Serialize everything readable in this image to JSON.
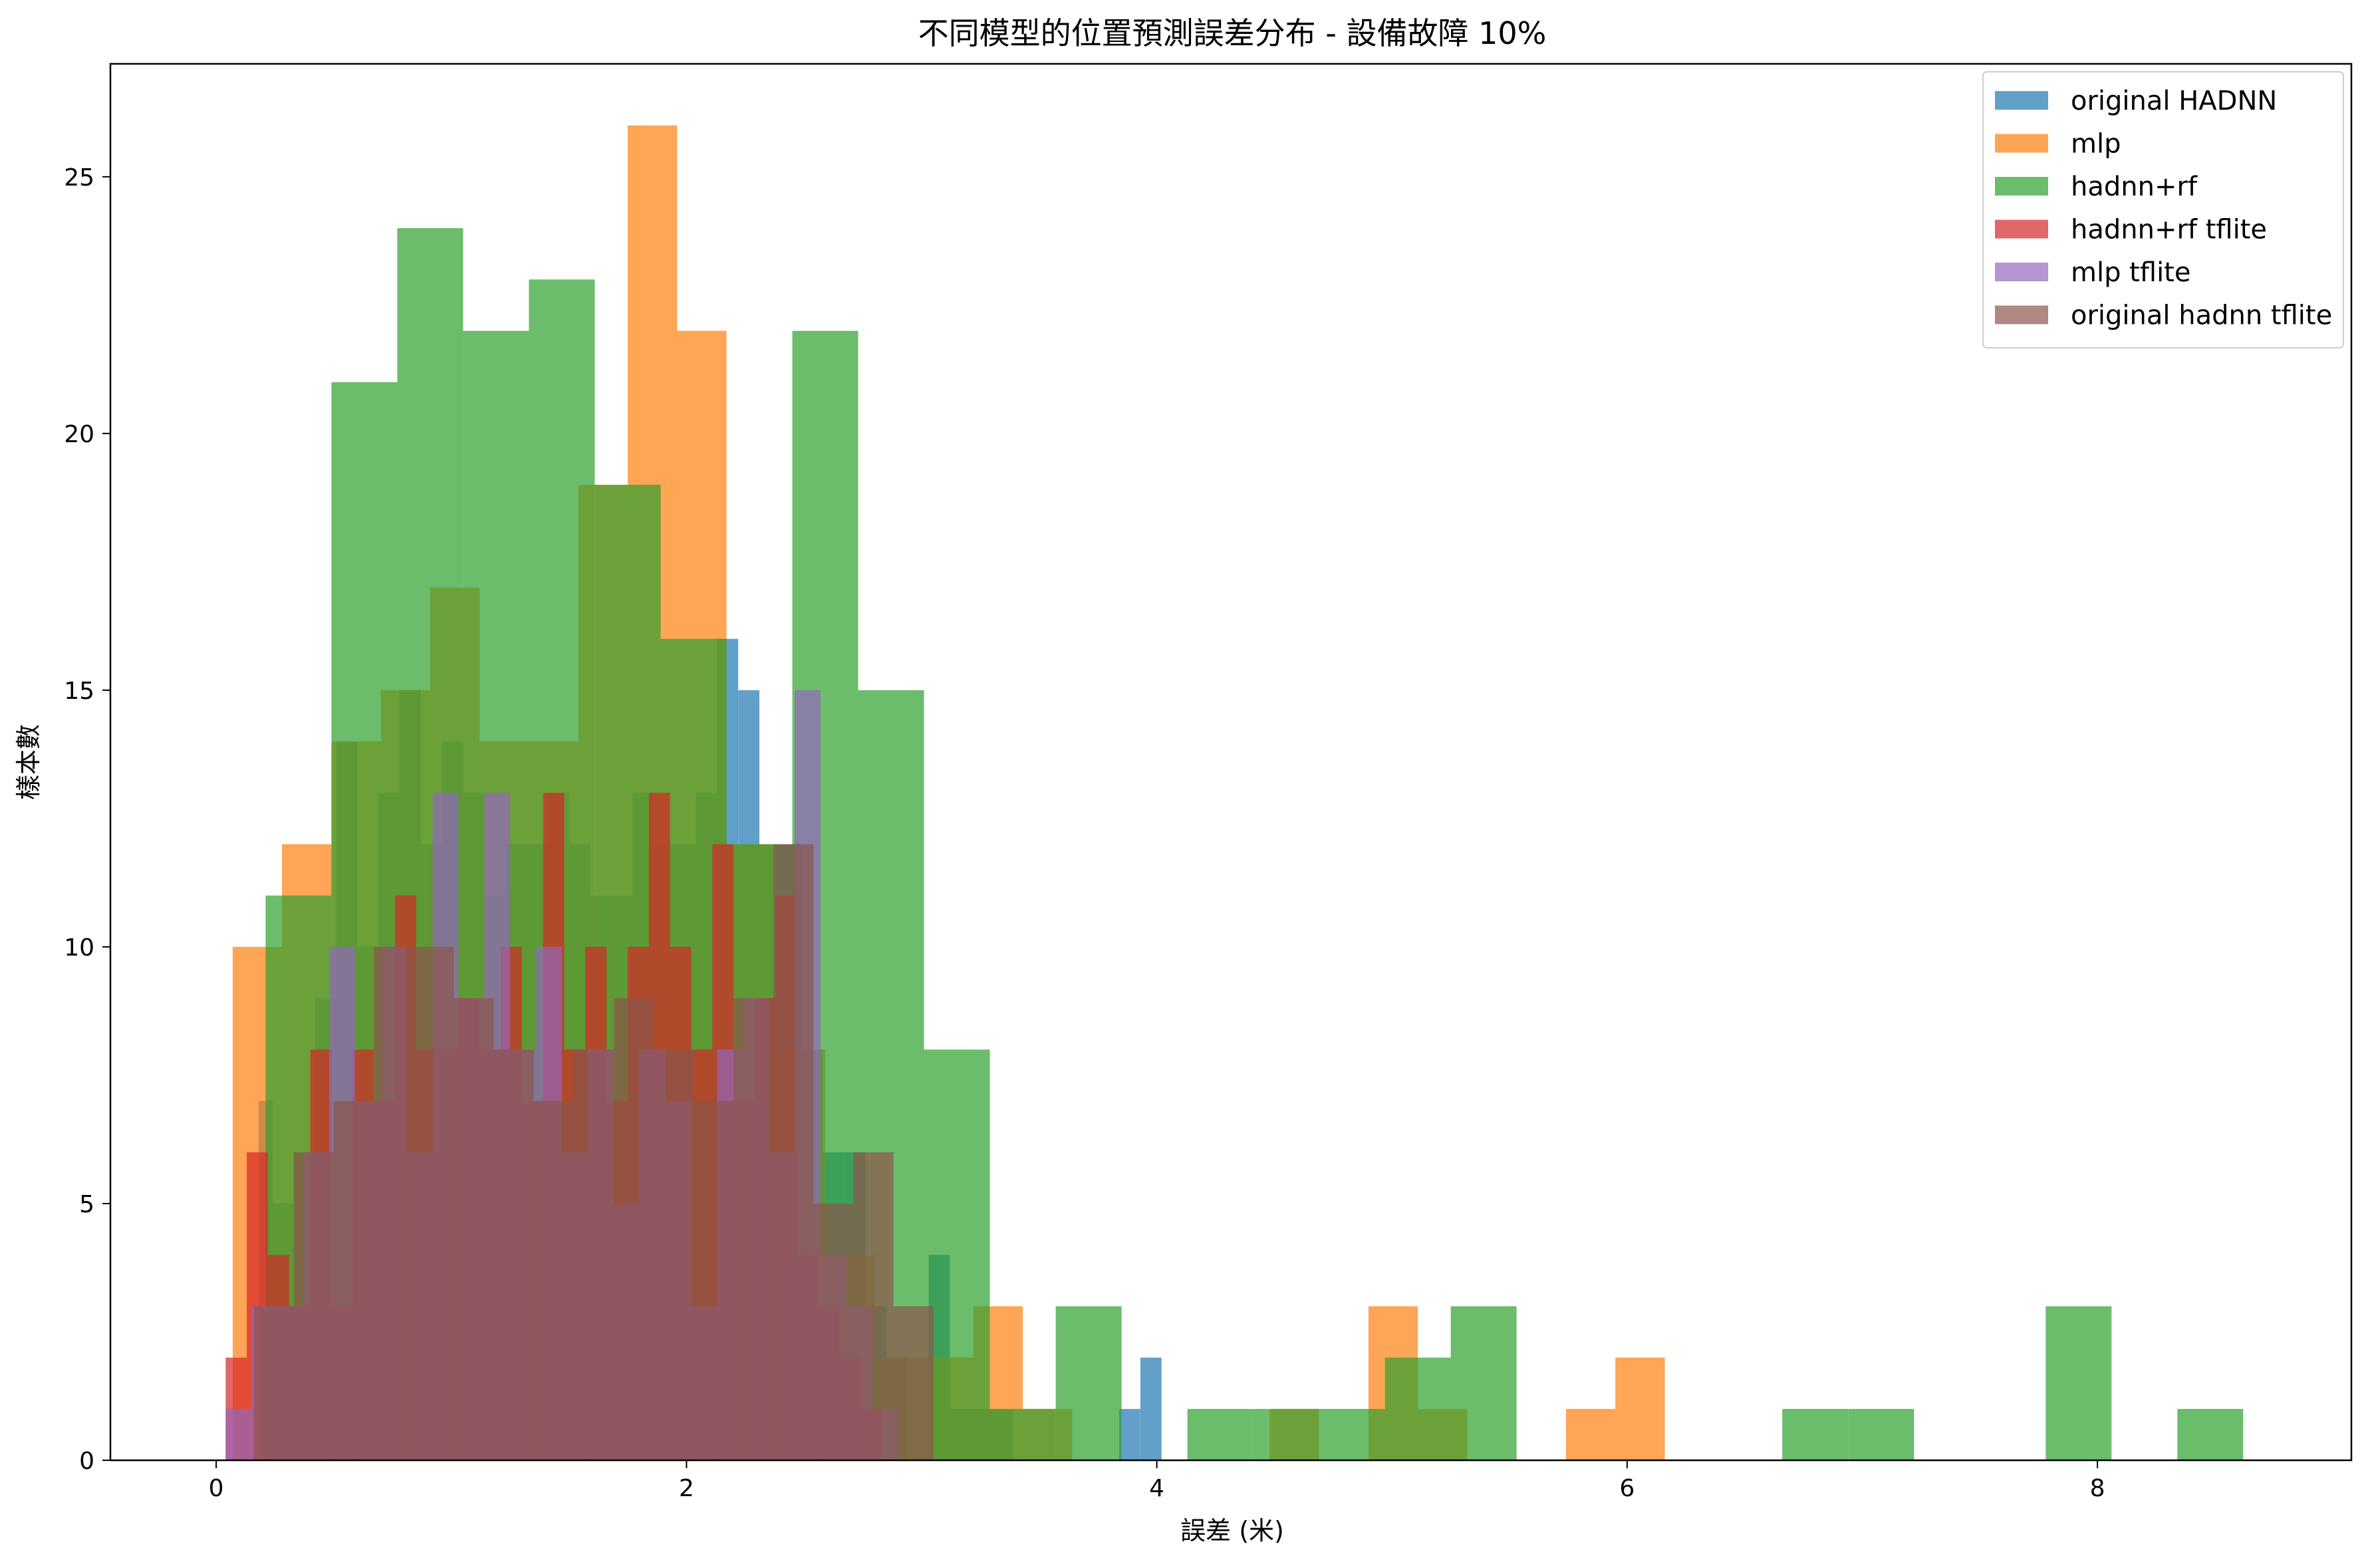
{
  "chart_data": {
    "type": "bar",
    "title": "不同模型的位置預測誤差分布 - 設備故障 10%",
    "xlabel": "誤差 (米)",
    "ylabel": "樣本數",
    "xlim": [
      -0.45,
      9.08
    ],
    "ylim": [
      0,
      27.2
    ],
    "xticks": [
      0,
      2,
      4,
      6,
      8
    ],
    "yticks": [
      0,
      5,
      10,
      15,
      20,
      25
    ],
    "grid": false,
    "legend_position": "top-right",
    "series": [
      {
        "name": "original HADNN",
        "color": "#1f77b4",
        "opacity": 0.7,
        "bins": [
          [
            0.18,
            0.24,
            7
          ],
          [
            0.24,
            0.33,
            5
          ],
          [
            0.33,
            0.42,
            6
          ],
          [
            0.42,
            0.51,
            9
          ],
          [
            0.51,
            0.6,
            14
          ],
          [
            0.6,
            0.69,
            10
          ],
          [
            0.69,
            0.78,
            13
          ],
          [
            0.78,
            0.87,
            15
          ],
          [
            0.87,
            0.96,
            12
          ],
          [
            0.96,
            1.05,
            14
          ],
          [
            1.05,
            1.14,
            13
          ],
          [
            1.14,
            1.23,
            11
          ],
          [
            1.23,
            1.32,
            12
          ],
          [
            1.32,
            1.41,
            12
          ],
          [
            1.41,
            1.5,
            13
          ],
          [
            1.5,
            1.59,
            12
          ],
          [
            1.59,
            1.68,
            11
          ],
          [
            1.68,
            1.77,
            11
          ],
          [
            1.77,
            1.86,
            13
          ],
          [
            1.86,
            1.95,
            12
          ],
          [
            1.95,
            2.04,
            12
          ],
          [
            2.04,
            2.13,
            13
          ],
          [
            2.13,
            2.22,
            16
          ],
          [
            2.22,
            2.31,
            15
          ],
          [
            2.31,
            2.4,
            12
          ],
          [
            2.4,
            2.49,
            12
          ],
          [
            2.49,
            2.58,
            8
          ],
          [
            2.58,
            2.67,
            6
          ],
          [
            2.67,
            2.76,
            6
          ],
          [
            2.76,
            2.85,
            3
          ],
          [
            2.85,
            2.94,
            2
          ],
          [
            3.03,
            3.12,
            4
          ],
          [
            3.12,
            3.21,
            1
          ],
          [
            3.21,
            3.3,
            1
          ],
          [
            3.3,
            3.39,
            1
          ],
          [
            3.84,
            3.93,
            1
          ],
          [
            3.93,
            4.02,
            2
          ]
        ]
      },
      {
        "name": "mlp",
        "color": "#ff7f0e",
        "opacity": 0.7,
        "bins": [
          [
            0.07,
            0.28,
            10
          ],
          [
            0.28,
            0.49,
            12
          ],
          [
            0.49,
            0.7,
            14
          ],
          [
            0.7,
            0.91,
            15
          ],
          [
            0.91,
            1.12,
            17
          ],
          [
            1.12,
            1.33,
            14
          ],
          [
            1.33,
            1.54,
            14
          ],
          [
            1.54,
            1.75,
            19
          ],
          [
            1.75,
            1.96,
            26
          ],
          [
            1.96,
            2.17,
            22
          ],
          [
            2.17,
            2.38,
            12
          ],
          [
            2.38,
            2.59,
            8
          ],
          [
            2.59,
            2.8,
            4
          ],
          [
            2.8,
            3.01,
            2
          ],
          [
            3.01,
            3.22,
            2
          ],
          [
            3.22,
            3.43,
            3
          ],
          [
            3.43,
            3.64,
            1
          ],
          [
            4.48,
            4.69,
            1
          ],
          [
            4.9,
            5.11,
            3
          ],
          [
            5.11,
            5.32,
            1
          ],
          [
            5.74,
            5.95,
            1
          ],
          [
            5.95,
            6.16,
            2
          ]
        ]
      },
      {
        "name": "hadnn+rf",
        "color": "#2ca02c",
        "opacity": 0.7,
        "bins": [
          [
            0.21,
            0.49,
            11
          ],
          [
            0.49,
            0.77,
            21
          ],
          [
            0.77,
            1.05,
            24
          ],
          [
            1.05,
            1.33,
            22
          ],
          [
            1.33,
            1.61,
            23
          ],
          [
            1.61,
            1.89,
            19
          ],
          [
            1.89,
            2.17,
            16
          ],
          [
            2.17,
            2.45,
            12
          ],
          [
            2.45,
            2.73,
            22
          ],
          [
            2.73,
            3.01,
            15
          ],
          [
            3.01,
            3.29,
            8
          ],
          [
            3.29,
            3.57,
            1
          ],
          [
            3.57,
            3.85,
            3
          ],
          [
            4.13,
            4.41,
            1
          ],
          [
            4.41,
            4.69,
            1
          ],
          [
            4.69,
            4.97,
            1
          ],
          [
            4.97,
            5.25,
            2
          ],
          [
            5.25,
            5.53,
            3
          ],
          [
            6.66,
            6.94,
            1
          ],
          [
            6.94,
            7.22,
            1
          ],
          [
            7.78,
            8.06,
            3
          ],
          [
            8.34,
            8.62,
            1
          ]
        ]
      },
      {
        "name": "hadnn+rf tflite",
        "color": "#d62728",
        "opacity": 0.7,
        "bins": [
          [
            0.04,
            0.13,
            2
          ],
          [
            0.13,
            0.22,
            6
          ],
          [
            0.22,
            0.31,
            4
          ],
          [
            0.31,
            0.4,
            3
          ],
          [
            0.4,
            0.49,
            8
          ],
          [
            0.49,
            0.58,
            3
          ],
          [
            0.58,
            0.67,
            8
          ],
          [
            0.67,
            0.76,
            7
          ],
          [
            0.76,
            0.85,
            11
          ],
          [
            0.85,
            0.94,
            8
          ],
          [
            0.94,
            1.03,
            8
          ],
          [
            1.03,
            1.12,
            9
          ],
          [
            1.12,
            1.21,
            8
          ],
          [
            1.21,
            1.3,
            10
          ],
          [
            1.3,
            1.39,
            7
          ],
          [
            1.39,
            1.48,
            13
          ],
          [
            1.48,
            1.57,
            8
          ],
          [
            1.57,
            1.66,
            10
          ],
          [
            1.66,
            1.75,
            7
          ],
          [
            1.75,
            1.84,
            10
          ],
          [
            1.84,
            1.93,
            13
          ],
          [
            1.93,
            2.02,
            10
          ],
          [
            2.02,
            2.11,
            8
          ],
          [
            2.11,
            2.2,
            12
          ],
          [
            2.2,
            2.29,
            7
          ],
          [
            2.29,
            2.38,
            9
          ],
          [
            2.38,
            2.47,
            11
          ],
          [
            2.47,
            2.56,
            4
          ],
          [
            2.56,
            2.65,
            3
          ],
          [
            2.65,
            2.74,
            2
          ],
          [
            2.74,
            2.83,
            1
          ]
        ]
      },
      {
        "name": "mlp tflite",
        "color": "#9467bd",
        "opacity": 0.7,
        "bins": [
          [
            0.04,
            0.15,
            1
          ],
          [
            0.15,
            0.26,
            3
          ],
          [
            0.26,
            0.37,
            3
          ],
          [
            0.37,
            0.48,
            6
          ],
          [
            0.48,
            0.59,
            10
          ],
          [
            0.59,
            0.7,
            7
          ],
          [
            0.7,
            0.81,
            10
          ],
          [
            0.81,
            0.92,
            6
          ],
          [
            0.92,
            1.03,
            13
          ],
          [
            1.03,
            1.14,
            9
          ],
          [
            1.14,
            1.25,
            13
          ],
          [
            1.25,
            1.36,
            8
          ],
          [
            1.36,
            1.47,
            10
          ],
          [
            1.47,
            1.58,
            6
          ],
          [
            1.58,
            1.69,
            8
          ],
          [
            1.69,
            1.8,
            5
          ],
          [
            1.8,
            1.91,
            8
          ],
          [
            1.91,
            2.02,
            7
          ],
          [
            2.02,
            2.13,
            3
          ],
          [
            2.13,
            2.24,
            8
          ],
          [
            2.24,
            2.35,
            9
          ],
          [
            2.35,
            2.46,
            6
          ],
          [
            2.46,
            2.57,
            15
          ],
          [
            2.57,
            2.68,
            4
          ],
          [
            2.68,
            2.79,
            3
          ],
          [
            2.79,
            2.9,
            1
          ]
        ]
      },
      {
        "name": "original hadnn tflite",
        "color": "#8c564b",
        "opacity": 0.7,
        "bins": [
          [
            0.16,
            0.33,
            3
          ],
          [
            0.33,
            0.5,
            6
          ],
          [
            0.5,
            0.67,
            7
          ],
          [
            0.67,
            0.84,
            10
          ],
          [
            0.84,
            1.01,
            10
          ],
          [
            1.01,
            1.18,
            9
          ],
          [
            1.18,
            1.35,
            8
          ],
          [
            1.35,
            1.52,
            7
          ],
          [
            1.52,
            1.69,
            8
          ],
          [
            1.69,
            1.86,
            9
          ],
          [
            1.86,
            2.03,
            8
          ],
          [
            2.03,
            2.2,
            7
          ],
          [
            2.2,
            2.37,
            9
          ],
          [
            2.37,
            2.54,
            12
          ],
          [
            2.54,
            2.71,
            5
          ],
          [
            2.71,
            2.88,
            6
          ],
          [
            2.88,
            3.05,
            3
          ]
        ]
      }
    ]
  }
}
